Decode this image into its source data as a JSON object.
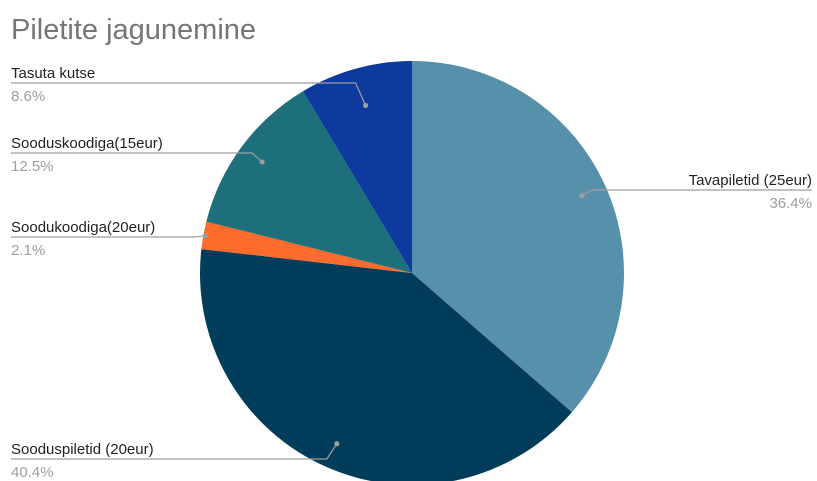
{
  "chart_data": {
    "type": "pie",
    "title": "Piletite jagunemine",
    "slices": [
      {
        "label": "Tavapiletid (25eur)",
        "value": 36.4,
        "value_label": "36.4%",
        "color": "#5690AB"
      },
      {
        "label": "Sooduspiletid (20eur)",
        "value": 40.4,
        "value_label": "40.4%",
        "color": "#013D5A"
      },
      {
        "label": "Soodukoodiga(20eur)",
        "value": 2.1,
        "value_label": "2.1%",
        "color": "#FF6B2C"
      },
      {
        "label": "Sooduskoodiga(15eur)",
        "value": 12.5,
        "value_label": "12.5%",
        "color": "#1D6F7B"
      },
      {
        "label": "Tasuta kutse",
        "value": 8.6,
        "value_label": "8.6%",
        "color": "#0E3A9F"
      }
    ],
    "start_angle": "12 o'clock",
    "direction": "clockwise"
  }
}
